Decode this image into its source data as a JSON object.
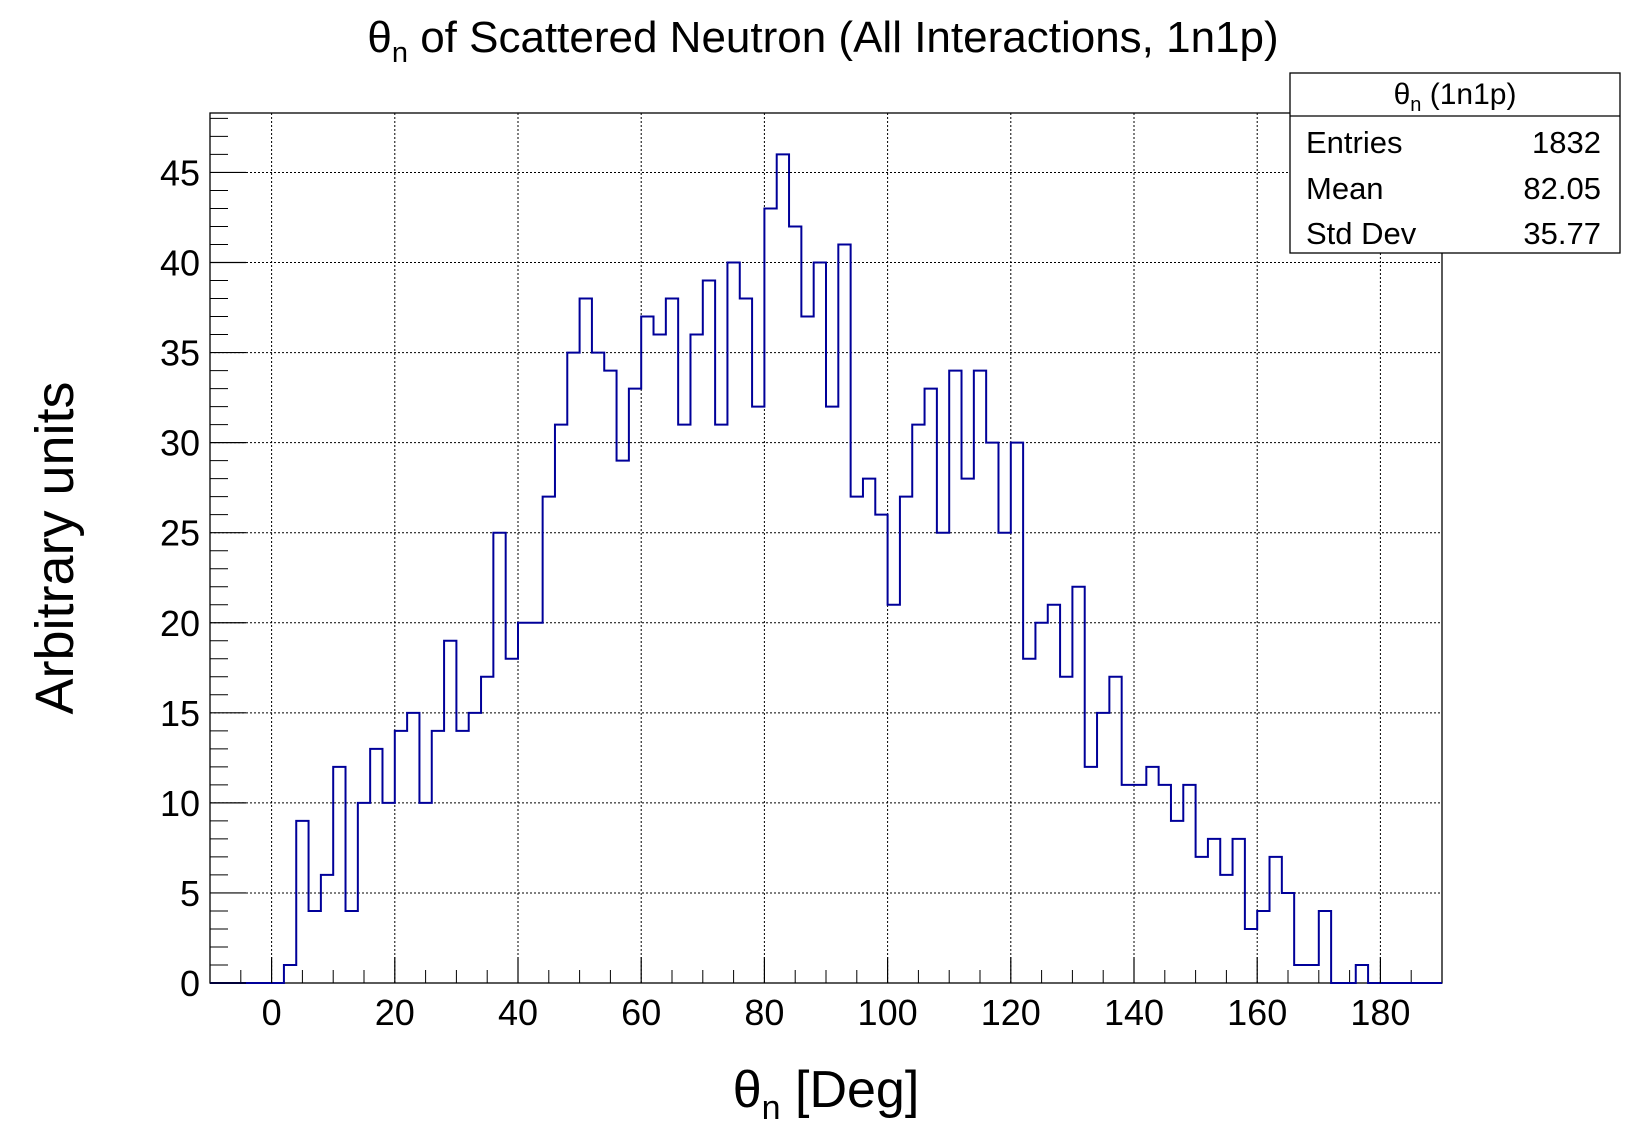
{
  "chart_data": {
    "type": "histogram",
    "title": {
      "symbol": "θ",
      "subscript": "n",
      "rest": " of Scattered Neutron (All Interactions, 1n1p)"
    },
    "xlabel": {
      "symbol": "θ",
      "subscript": "n",
      "rest": " [Deg]"
    },
    "ylabel": "Arbitrary units",
    "xlim": [
      -10,
      190
    ],
    "ylim": [
      0,
      48.3
    ],
    "bin_width": 2,
    "bin_start": -10,
    "x_ticks": [
      0,
      20,
      40,
      60,
      80,
      100,
      120,
      140,
      160,
      180
    ],
    "y_ticks": [
      0,
      5,
      10,
      15,
      20,
      25,
      30,
      35,
      40,
      45
    ],
    "grid": true,
    "line_color": "#000099",
    "series": [
      {
        "values": [
          0,
          0,
          0,
          0,
          0,
          0,
          1,
          9,
          4,
          6,
          12,
          4,
          10,
          13,
          10,
          14,
          15,
          10,
          14,
          19,
          14,
          15,
          17,
          25,
          18,
          20,
          20,
          27,
          31,
          35,
          38,
          35,
          34,
          29,
          33,
          37,
          36,
          38,
          31,
          36,
          39,
          31,
          40,
          38,
          32,
          43,
          46,
          42,
          37,
          40,
          32,
          41,
          27,
          28,
          26,
          21,
          27,
          31,
          33,
          25,
          34,
          28,
          34,
          30,
          25,
          30,
          18,
          20,
          21,
          17,
          22,
          12,
          15,
          17,
          11,
          11,
          12,
          11,
          9,
          11,
          7,
          8,
          6,
          8,
          3,
          4,
          7,
          5,
          1,
          1,
          4,
          0,
          0,
          1,
          0,
          0,
          0,
          0,
          0,
          0
        ]
      }
    ],
    "stats_box": {
      "title": {
        "symbol": "θ",
        "subscript": "n",
        "rest": " (1n1p)"
      },
      "rows": [
        {
          "label": "Entries",
          "value": "1832"
        },
        {
          "label": "Mean",
          "value": "82.05"
        },
        {
          "label": "Std Dev",
          "value": "35.77"
        }
      ]
    }
  }
}
